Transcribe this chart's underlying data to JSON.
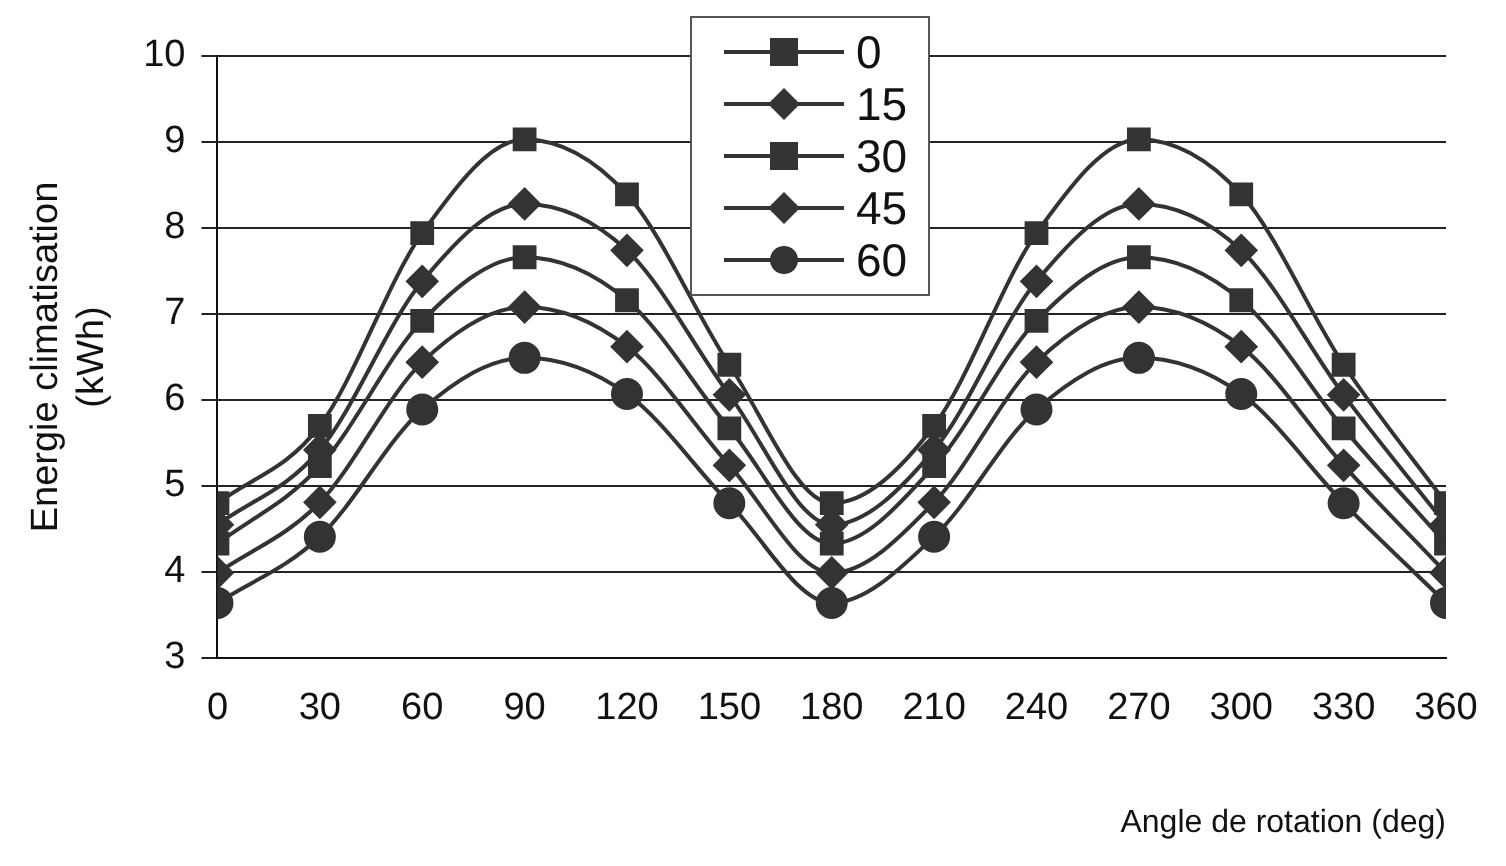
{
  "chart_data": {
    "type": "line",
    "xlabel": "Angle de rotation (deg)",
    "ylabel": "Energie climatisation (kWh)",
    "x": [
      0,
      30,
      60,
      90,
      120,
      150,
      180,
      210,
      240,
      270,
      300,
      330,
      360
    ],
    "xlim": [
      0,
      360
    ],
    "xticks": [
      0,
      30,
      60,
      90,
      120,
      150,
      180,
      210,
      240,
      270,
      300,
      330,
      360
    ],
    "ylim": [
      3,
      10
    ],
    "yticks": [
      3,
      4,
      5,
      6,
      7,
      8,
      9,
      10
    ],
    "grid": "y",
    "legend": "top",
    "line_style": "solid",
    "series": [
      {
        "name": "0",
        "color": "#333333",
        "marker": "square",
        "values": [
          4.8,
          5.7,
          7.94,
          9.03,
          8.39,
          6.41,
          4.8,
          5.7,
          7.94,
          9.03,
          8.39,
          6.41,
          4.8
        ]
      },
      {
        "name": "15",
        "color": "#333333",
        "marker": "diamond",
        "values": [
          4.55,
          5.42,
          7.38,
          8.28,
          7.74,
          6.06,
          4.55,
          5.42,
          7.38,
          8.28,
          7.74,
          6.06,
          4.55
        ]
      },
      {
        "name": "30",
        "color": "#333333",
        "marker": "square",
        "values": [
          4.33,
          5.23,
          6.92,
          7.66,
          7.16,
          5.67,
          4.33,
          5.23,
          6.92,
          7.66,
          7.16,
          5.67,
          4.33
        ]
      },
      {
        "name": "45",
        "color": "#333333",
        "marker": "diamond",
        "values": [
          3.99,
          4.81,
          6.44,
          7.08,
          6.62,
          5.24,
          3.99,
          4.81,
          6.44,
          7.08,
          6.62,
          5.24,
          3.99
        ]
      },
      {
        "name": "60",
        "color": "#333333",
        "marker": "circle",
        "values": [
          3.64,
          4.41,
          5.89,
          6.49,
          6.07,
          4.8,
          3.64,
          4.41,
          5.89,
          6.49,
          6.07,
          4.8,
          3.64
        ]
      }
    ]
  }
}
